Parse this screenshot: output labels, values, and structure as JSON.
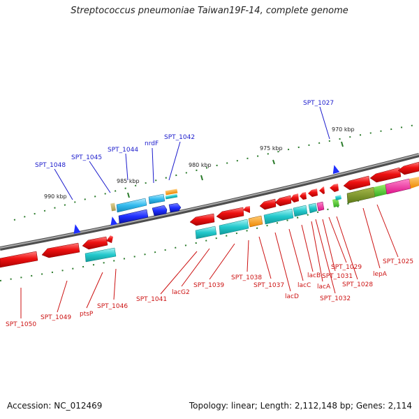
{
  "title": "Streptococcus pneumoniae Taiwan19F-14, complete genome",
  "footer": {
    "accession": "Accession: NC_012469",
    "summary": "Topology: linear; Length: 2,112,148 bp; Genes: 2,114"
  },
  "scale_labels": [
    "970 kbp",
    "975 kbp",
    "980 kbp",
    "985 kbp",
    "990 kbp"
  ],
  "genes_top": [
    "SPT_1048",
    "SPT_1045",
    "SPT_1044",
    "nrdF",
    "SPT_1042",
    "SPT_1027"
  ],
  "genes_bottom": [
    "SPT_1050",
    "SPT_1049",
    "ptsP",
    "SPT_1046",
    "SPT_1041",
    "lacG2",
    "SPT_1039",
    "SPT_1038",
    "SPT_1037",
    "lacD",
    "lacC",
    "lacB",
    "lacA",
    "SPT_1032",
    "SPT_1031",
    "SPT_1029",
    "SPT_1028",
    "lepA",
    "SPT_1025"
  ],
  "colors": {
    "forward_cds": "#1f2fff",
    "reverse_cds": "#ee1111",
    "rna_row": "#22cccc",
    "backbone": "#777777",
    "tick": "#2a7a2a",
    "label_forward": "#1a1acc",
    "label_reverse": "#cc1111"
  }
}
